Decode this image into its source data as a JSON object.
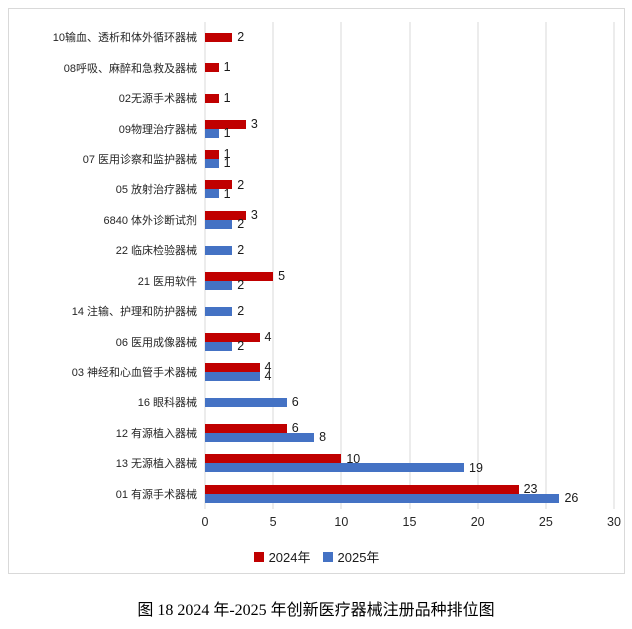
{
  "caption": "图 18 2024 年-2025 年创新医疗器械注册品种排位图",
  "colors": {
    "grid": "#d9d9d9",
    "frame_border": "#d9d9d9",
    "text": "#262626"
  },
  "chart_data": {
    "type": "bar",
    "orientation": "horizontal",
    "title": "",
    "xlabel": "",
    "ylabel": "",
    "xlim": [
      0,
      30
    ],
    "x_ticks": [
      0,
      5,
      10,
      15,
      20,
      25,
      30
    ],
    "grid": true,
    "legend_position": "bottom",
    "categories": [
      "10输血、透析和体外循环器械",
      "08呼吸、麻醉和急救及器械",
      "02无源手术器械",
      "09物理治疗器械",
      "07 医用诊察和监护器械",
      "05 放射治疗器械",
      "6840 体外诊断试剂",
      "22 临床检验器械",
      "21 医用软件",
      "14 注输、护理和防护器械",
      "06 医用成像器械",
      "03 神经和心血管手术器械",
      "16 眼科器械",
      "12 有源植入器械",
      "13 无源植入器械",
      "01 有源手术器械"
    ],
    "series": [
      {
        "name": "2024年",
        "color": "#c00000",
        "values": [
          2,
          1,
          1,
          3,
          1,
          2,
          3,
          0,
          5,
          0,
          4,
          4,
          0,
          6,
          10,
          23
        ]
      },
      {
        "name": "2025年",
        "color": "#4472c4",
        "values": [
          0,
          0,
          0,
          1,
          1,
          1,
          2,
          2,
          2,
          2,
          2,
          4,
          6,
          8,
          19,
          26
        ]
      }
    ]
  }
}
